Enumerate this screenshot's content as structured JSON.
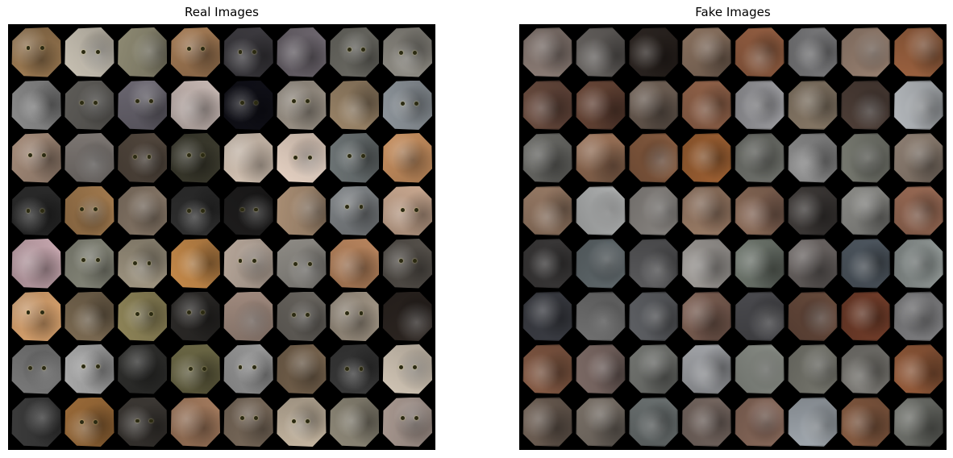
{
  "panels": [
    {
      "title": "Real Images",
      "kind": "real",
      "tile_colors": [
        "#9c7a52",
        "#c9c2b4",
        "#8e8a73",
        "#a47b55",
        "#3d3b40",
        "#6f6870",
        "#6e6d66",
        "#8d8a82",
        "#8a8a8a",
        "#5e5c58",
        "#6a6670",
        "#c8b9b4",
        "#101018",
        "#9f968a",
        "#9a8468",
        "#8d949a",
        "#a58c7a",
        "#7c7672",
        "#53483e",
        "#3c3b2e",
        "#d9c8b8",
        "#e7d3c4",
        "#6c7374",
        "#c89060",
        "#2a2a2a",
        "#a27a4e",
        "#8a7a6a",
        "#303030",
        "#1d1c1c",
        "#a98e74",
        "#7e8285",
        "#c9a890",
        "#c8a8b0",
        "#8a8b7d",
        "#9e9480",
        "#c68a4a",
        "#b7a79a",
        "#8e8b85",
        "#b9855e",
        "#57524c",
        "#e0a872",
        "#7b6a52",
        "#8e8458",
        "#2c2a28",
        "#a08a7e",
        "#6a6660",
        "#a09484",
        "#2c2521",
        "#7a7a7a",
        "#a9a9a9",
        "#2e2e2c",
        "#6a6644",
        "#9c9c9c",
        "#7a6650",
        "#3a3a3a",
        "#d2c6b6",
        "#3b3b3b",
        "#9a6a38",
        "#3c3834",
        "#a47b5e",
        "#7e6e5e",
        "#c4b5a0",
        "#8e8878",
        "#a89890"
      ]
    },
    {
      "title": "Fake Images",
      "kind": "fake",
      "tile_colors": [
        "#8a7a72",
        "#676360",
        "#2c2420",
        "#8a705c",
        "#9a5e3e",
        "#7e7e80",
        "#9c8270",
        "#a0603a",
        "#6c4a3c",
        "#6a4434",
        "#6e5e52",
        "#9a6448",
        "#9c9ca0",
        "#8a7a66",
        "#4e3e36",
        "#b4b8bc",
        "#6a6a66",
        "#9a6e52",
        "#8a5a3c",
        "#a8622e",
        "#6e706a",
        "#8e8e8e",
        "#76786e",
        "#8e7e70",
        "#9a7a62",
        "#b2b4b4",
        "#8c8884",
        "#9c7a62",
        "#8e6a56",
        "#3e3a38",
        "#8a8a86",
        "#9e6a52",
        "#3c3a3a",
        "#606a6e",
        "#5a5a5c",
        "#a09c98",
        "#6e766c",
        "#6a6462",
        "#4e5862",
        "#8e9694",
        "#3c3e46",
        "#707070",
        "#5e6064",
        "#7e5e50",
        "#4a4a4e",
        "#6a4a3a",
        "#7a3e28",
        "#7e7e80",
        "#8a5a42",
        "#7e6a64",
        "#727470",
        "#a0a2a6",
        "#8a8e86",
        "#7a7a70",
        "#7a7872",
        "#9a5a36",
        "#6e5e52",
        "#7a7066",
        "#6a7070",
        "#7a6a62",
        "#8e6a5a",
        "#a0a8b0",
        "#8a5a3e",
        "#6e706a"
      ]
    }
  ]
}
